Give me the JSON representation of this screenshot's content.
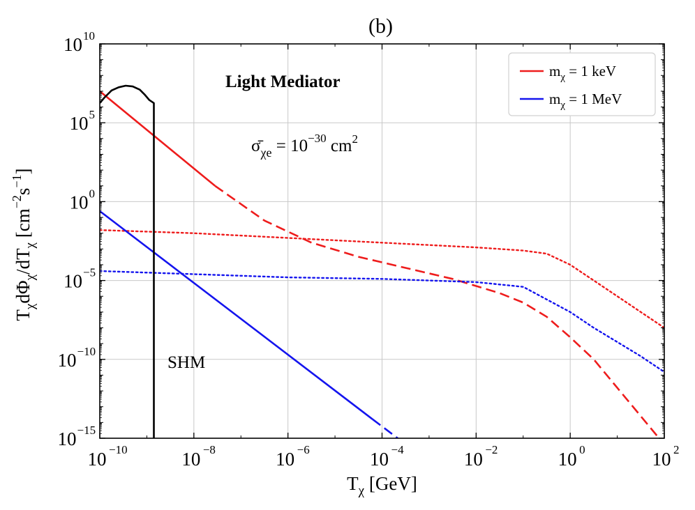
{
  "chart_data": {
    "type": "line",
    "title": "(b)",
    "xlabel": "T_χ [GeV]",
    "ylabel": "T_χ dΦ_χ/dT_χ [cm^-2 s^-1]",
    "xscale": "log",
    "yscale": "log",
    "xlim_log10": [
      -10,
      2
    ],
    "ylim_log10": [
      -15,
      10
    ],
    "grid": true,
    "legend_position": "top-right",
    "x_ticks": [
      {
        "base": "10",
        "exp": "−10",
        "log": -10
      },
      {
        "base": "10",
        "exp": "−8",
        "log": -8
      },
      {
        "base": "10",
        "exp": "−6",
        "log": -6
      },
      {
        "base": "10",
        "exp": "−4",
        "log": -4
      },
      {
        "base": "10",
        "exp": "−2",
        "log": -2
      },
      {
        "base": "10",
        "exp": "0",
        "log": 0
      },
      {
        "base": "10",
        "exp": "2",
        "log": 2
      }
    ],
    "y_ticks": [
      {
        "base": "10",
        "exp": "−15",
        "log": -15
      },
      {
        "base": "10",
        "exp": "−10",
        "log": -10
      },
      {
        "base": "10",
        "exp": "−5",
        "log": -5
      },
      {
        "base": "10",
        "exp": "0",
        "log": 0
      },
      {
        "base": "10",
        "exp": "5",
        "log": 5
      },
      {
        "base": "10",
        "exp": "10",
        "log": 10
      }
    ],
    "annotations": {
      "model": "Light Mediator",
      "cross_section_sigma": "σ̄",
      "cross_section_sub": "χe",
      "cross_section_eq": " = 10",
      "cross_section_exp": "−30",
      "cross_section_unit": " cm",
      "cross_section_unit_exp": "2",
      "shm_label": "SHM"
    },
    "legend": [
      {
        "prefix": "m",
        "sub": "χ",
        "suffix": " = 1 keV",
        "color": "#ee1c1c"
      },
      {
        "prefix": "m",
        "sub": "χ",
        "suffix": " = 1 MeV",
        "color": "#1414ee"
      }
    ],
    "series": [
      {
        "name": "m_χ = 1 keV (solid)",
        "color": "#ee1c1c",
        "style": "solid",
        "x_log10": [
          -10,
          -7.55
        ],
        "y_log10": [
          7.0,
          1.0
        ]
      },
      {
        "name": "m_χ = 1 keV (dashed)",
        "color": "#ee1c1c",
        "style": "dashed",
        "x_log10": [
          -7.55,
          -6.5,
          -5.5,
          -4.5,
          -3.5,
          -2.5,
          -1.5,
          -1.0,
          -0.5,
          0,
          0.5,
          1.0,
          1.5,
          2.0
        ],
        "y_log10": [
          1.0,
          -1.2,
          -2.6,
          -3.5,
          -4.2,
          -4.9,
          -5.8,
          -6.4,
          -7.3,
          -8.6,
          -10.0,
          -11.8,
          -13.6,
          -15.4
        ]
      },
      {
        "name": "m_χ = 1 keV (dotted)",
        "color": "#ee1c1c",
        "style": "dotted",
        "x_log10": [
          -10,
          -8,
          -6,
          -4,
          -2,
          -1,
          -0.5,
          0,
          0.5,
          1.0,
          1.5,
          2.0
        ],
        "y_log10": [
          -1.8,
          -2.0,
          -2.3,
          -2.6,
          -2.9,
          -3.1,
          -3.3,
          -4.0,
          -5.0,
          -6.0,
          -7.0,
          -8.0
        ]
      },
      {
        "name": "m_χ = 1 MeV (solid)",
        "color": "#1414ee",
        "style": "solid",
        "x_log10": [
          -10,
          -4.2
        ],
        "y_log10": [
          -0.6,
          -13.8
        ]
      },
      {
        "name": "m_χ = 1 MeV (dashed)",
        "color": "#1414ee",
        "style": "dashed",
        "x_log10": [
          -4.2,
          -3.0
        ],
        "y_log10": [
          -13.8,
          -16.5
        ]
      },
      {
        "name": "m_χ = 1 MeV (dotted)",
        "color": "#1414ee",
        "style": "dotted",
        "x_log10": [
          -10,
          -8,
          -6,
          -4,
          -2,
          -1,
          -0.5,
          0,
          0.5,
          1.0,
          1.5,
          2.0
        ],
        "y_log10": [
          -4.4,
          -4.6,
          -4.8,
          -4.9,
          -5.1,
          -5.4,
          -6.2,
          -7.0,
          -8.0,
          -8.9,
          -9.8,
          -10.8
        ]
      },
      {
        "name": "SHM",
        "color": "#000000",
        "style": "solid",
        "x_log10": [
          -10,
          -9.9,
          -9.75,
          -9.6,
          -9.45,
          -9.3,
          -9.15,
          -9.05,
          -8.95,
          -8.85,
          -8.85,
          -8.85
        ],
        "y_log10": [
          6.25,
          6.6,
          7.05,
          7.25,
          7.35,
          7.3,
          7.1,
          6.8,
          6.45,
          6.25,
          6.25,
          -15
        ]
      }
    ]
  }
}
